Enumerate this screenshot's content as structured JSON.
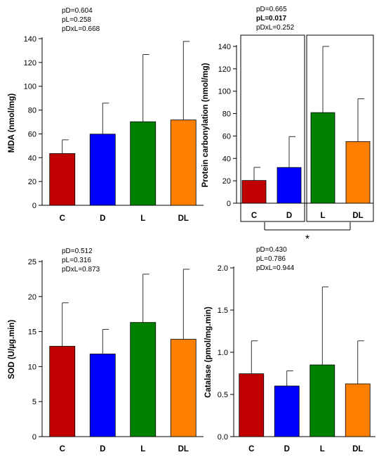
{
  "chart_data": [
    {
      "type": "bar",
      "categories": [
        "C",
        "D",
        "L",
        "DL"
      ],
      "values": [
        43.5,
        59.8,
        70.2,
        71.7
      ],
      "errors": [
        11.5,
        26.0,
        56.5,
        66.0
      ],
      "colors": [
        "#c00000",
        "#0000ff",
        "#008000",
        "#ff8000"
      ],
      "ylabel": "MDA (nmol/mg)",
      "ylim": [
        0,
        140
      ],
      "yticks": [
        0,
        20,
        40,
        60,
        80,
        100,
        120,
        140
      ],
      "ytick_labels": [
        "0",
        "20",
        "40",
        "60",
        "80",
        "100",
        "120",
        "140"
      ],
      "stats": [
        {
          "text": "pD=0.604",
          "bold": false
        },
        {
          "text": "pL=0.258",
          "bold": false
        },
        {
          "text": "pDxL=0.668",
          "bold": false
        }
      ]
    },
    {
      "type": "bar",
      "categories": [
        "C",
        "D",
        "L",
        "DL"
      ],
      "values": [
        20.3,
        31.9,
        80.9,
        55.0
      ],
      "errors": [
        11.7,
        27.6,
        59.1,
        38.3
      ],
      "colors": [
        "#c00000",
        "#0000ff",
        "#008000",
        "#ff8000"
      ],
      "ylabel": "Protein carbonylation (nmol/mg)",
      "ylim": [
        0,
        140
      ],
      "yticks": [
        0,
        20,
        40,
        60,
        80,
        100,
        120,
        140
      ],
      "ytick_labels": [
        "0",
        "20",
        "40",
        "60",
        "80",
        "100",
        "120",
        "140"
      ],
      "stats": [
        {
          "text": "pD=0.665",
          "bold": false
        },
        {
          "text": "pL=0.017",
          "bold": true
        },
        {
          "text": "pDxL=0.252",
          "bold": false
        }
      ],
      "significance": "*"
    },
    {
      "type": "bar",
      "categories": [
        "C",
        "D",
        "L",
        "DL"
      ],
      "values": [
        12.9,
        11.8,
        16.3,
        13.9
      ],
      "errors": [
        6.2,
        3.5,
        6.9,
        10.0
      ],
      "colors": [
        "#c00000",
        "#0000ff",
        "#008000",
        "#ff8000"
      ],
      "ylabel": "SOD (U/µg.min)",
      "ylim": [
        0,
        25
      ],
      "yticks": [
        0,
        5,
        10,
        15,
        20,
        25
      ],
      "ytick_labels": [
        "0",
        "5",
        "10",
        "15",
        "20",
        "25"
      ],
      "stats": [
        {
          "text": "pD=0.512",
          "bold": false
        },
        {
          "text": "pL=0.316",
          "bold": false
        },
        {
          "text": "pDxL=0.873",
          "bold": false
        }
      ]
    },
    {
      "type": "bar",
      "categories": [
        "C",
        "D",
        "L",
        "DL"
      ],
      "values": [
        0.745,
        0.6,
        0.85,
        0.625
      ],
      "errors": [
        0.39,
        0.18,
        0.925,
        0.51
      ],
      "colors": [
        "#c00000",
        "#0000ff",
        "#008000",
        "#ff8000"
      ],
      "ylabel": "Catalase (pmol/mg.min)",
      "ylim": [
        0,
        2.0
      ],
      "yticks": [
        0,
        0.5,
        1.0,
        1.5,
        2.0
      ],
      "ytick_labels": [
        "0.0",
        "0.5",
        "1.0",
        "1.5",
        "2.0"
      ],
      "stats": [
        {
          "text": "pD=0.430",
          "bold": false
        },
        {
          "text": "pL=0.786",
          "bold": false
        },
        {
          "text": "pDxL=0.944",
          "bold": false
        }
      ]
    }
  ]
}
